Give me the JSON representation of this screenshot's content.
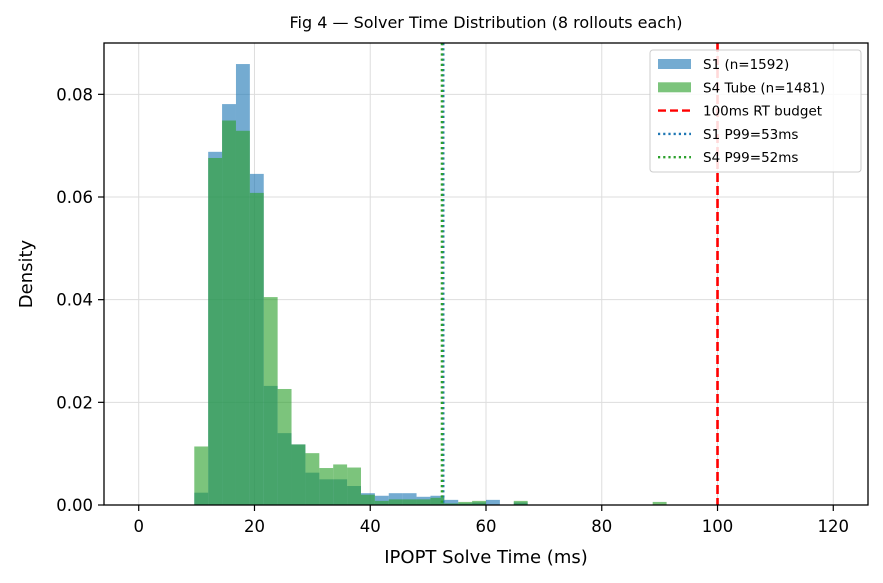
{
  "chart_data": {
    "type": "histogram",
    "title": "Fig 4 — Solver Time Distribution (8 rollouts each)",
    "xlabel": "IPOPT Solve Time (ms)",
    "ylabel": "Density",
    "xlim": [
      -6,
      126
    ],
    "ylim": [
      0,
      0.09
    ],
    "xticks": [
      0,
      20,
      40,
      60,
      80,
      100,
      120
    ],
    "yticks": [
      0.0,
      0.02,
      0.04,
      0.06,
      0.08
    ],
    "ytick_labels": [
      "0.00",
      "0.02",
      "0.04",
      "0.06",
      "0.08"
    ],
    "bin_edges": [
      0,
      2.4,
      4.8,
      7.2,
      9.6,
      12,
      14.4,
      16.8,
      19.2,
      21.6,
      24,
      26.4,
      28.8,
      31.2,
      33.6,
      36,
      38.4,
      40.8,
      43.2,
      45.6,
      48,
      50.4,
      52.8,
      55.2,
      57.6,
      60,
      62.4,
      64.8,
      67.2,
      69.6,
      72,
      74.4,
      76.8,
      79.2,
      81.6,
      84,
      86.4,
      88.8,
      91.2,
      93.6,
      96,
      98.4,
      100.8,
      103.2,
      105.6,
      108,
      110.4,
      112.8,
      115.2,
      117.6,
      120
    ],
    "series": [
      {
        "name": "S1 (n=1592)",
        "color": "#1f77b4",
        "opacity": 0.62,
        "values": [
          0,
          0,
          0,
          0,
          0.0024,
          0.0688,
          0.0781,
          0.0859,
          0.0645,
          0.0232,
          0.014,
          0.0118,
          0.0063,
          0.005,
          0.005,
          0.0037,
          0.0023,
          0.0018,
          0.0023,
          0.0023,
          0.0016,
          0.0018,
          0.001,
          0.0003,
          0.0005,
          0.001,
          0,
          0.0005,
          0,
          0,
          0,
          0,
          0,
          0,
          0,
          0,
          0,
          0,
          0,
          0,
          0,
          0,
          0,
          0,
          0,
          0,
          0,
          0,
          0,
          0
        ]
      },
      {
        "name": "S4 Tube (n=1481)",
        "color": "#2ca02c",
        "opacity": 0.62,
        "values": [
          0,
          0,
          0,
          0,
          0.0114,
          0.0676,
          0.0749,
          0.0729,
          0.0608,
          0.0405,
          0.0226,
          0.0118,
          0.0101,
          0.0072,
          0.0079,
          0.0073,
          0.002,
          0.0008,
          0.0011,
          0.0011,
          0.0011,
          0.0014,
          0.0003,
          0.0006,
          0.0008,
          0,
          0,
          0.0008,
          0,
          0,
          0,
          0,
          0,
          0,
          0,
          0,
          0,
          0.0006,
          0,
          0,
          0,
          0,
          0,
          0,
          0,
          0,
          0,
          0,
          0,
          0
        ]
      }
    ],
    "vlines": [
      {
        "name": "100ms RT budget",
        "x": 100,
        "color": "#ff0000",
        "style": "dashed"
      },
      {
        "name": "S1 P99=53ms",
        "x": 52.6,
        "color": "#1f77b4",
        "style": "dotted"
      },
      {
        "name": "S4 P99=52ms",
        "x": 52.4,
        "color": "#2ca02c",
        "style": "dotted"
      }
    ],
    "legend": {
      "position": "top-right"
    },
    "grid": true
  }
}
